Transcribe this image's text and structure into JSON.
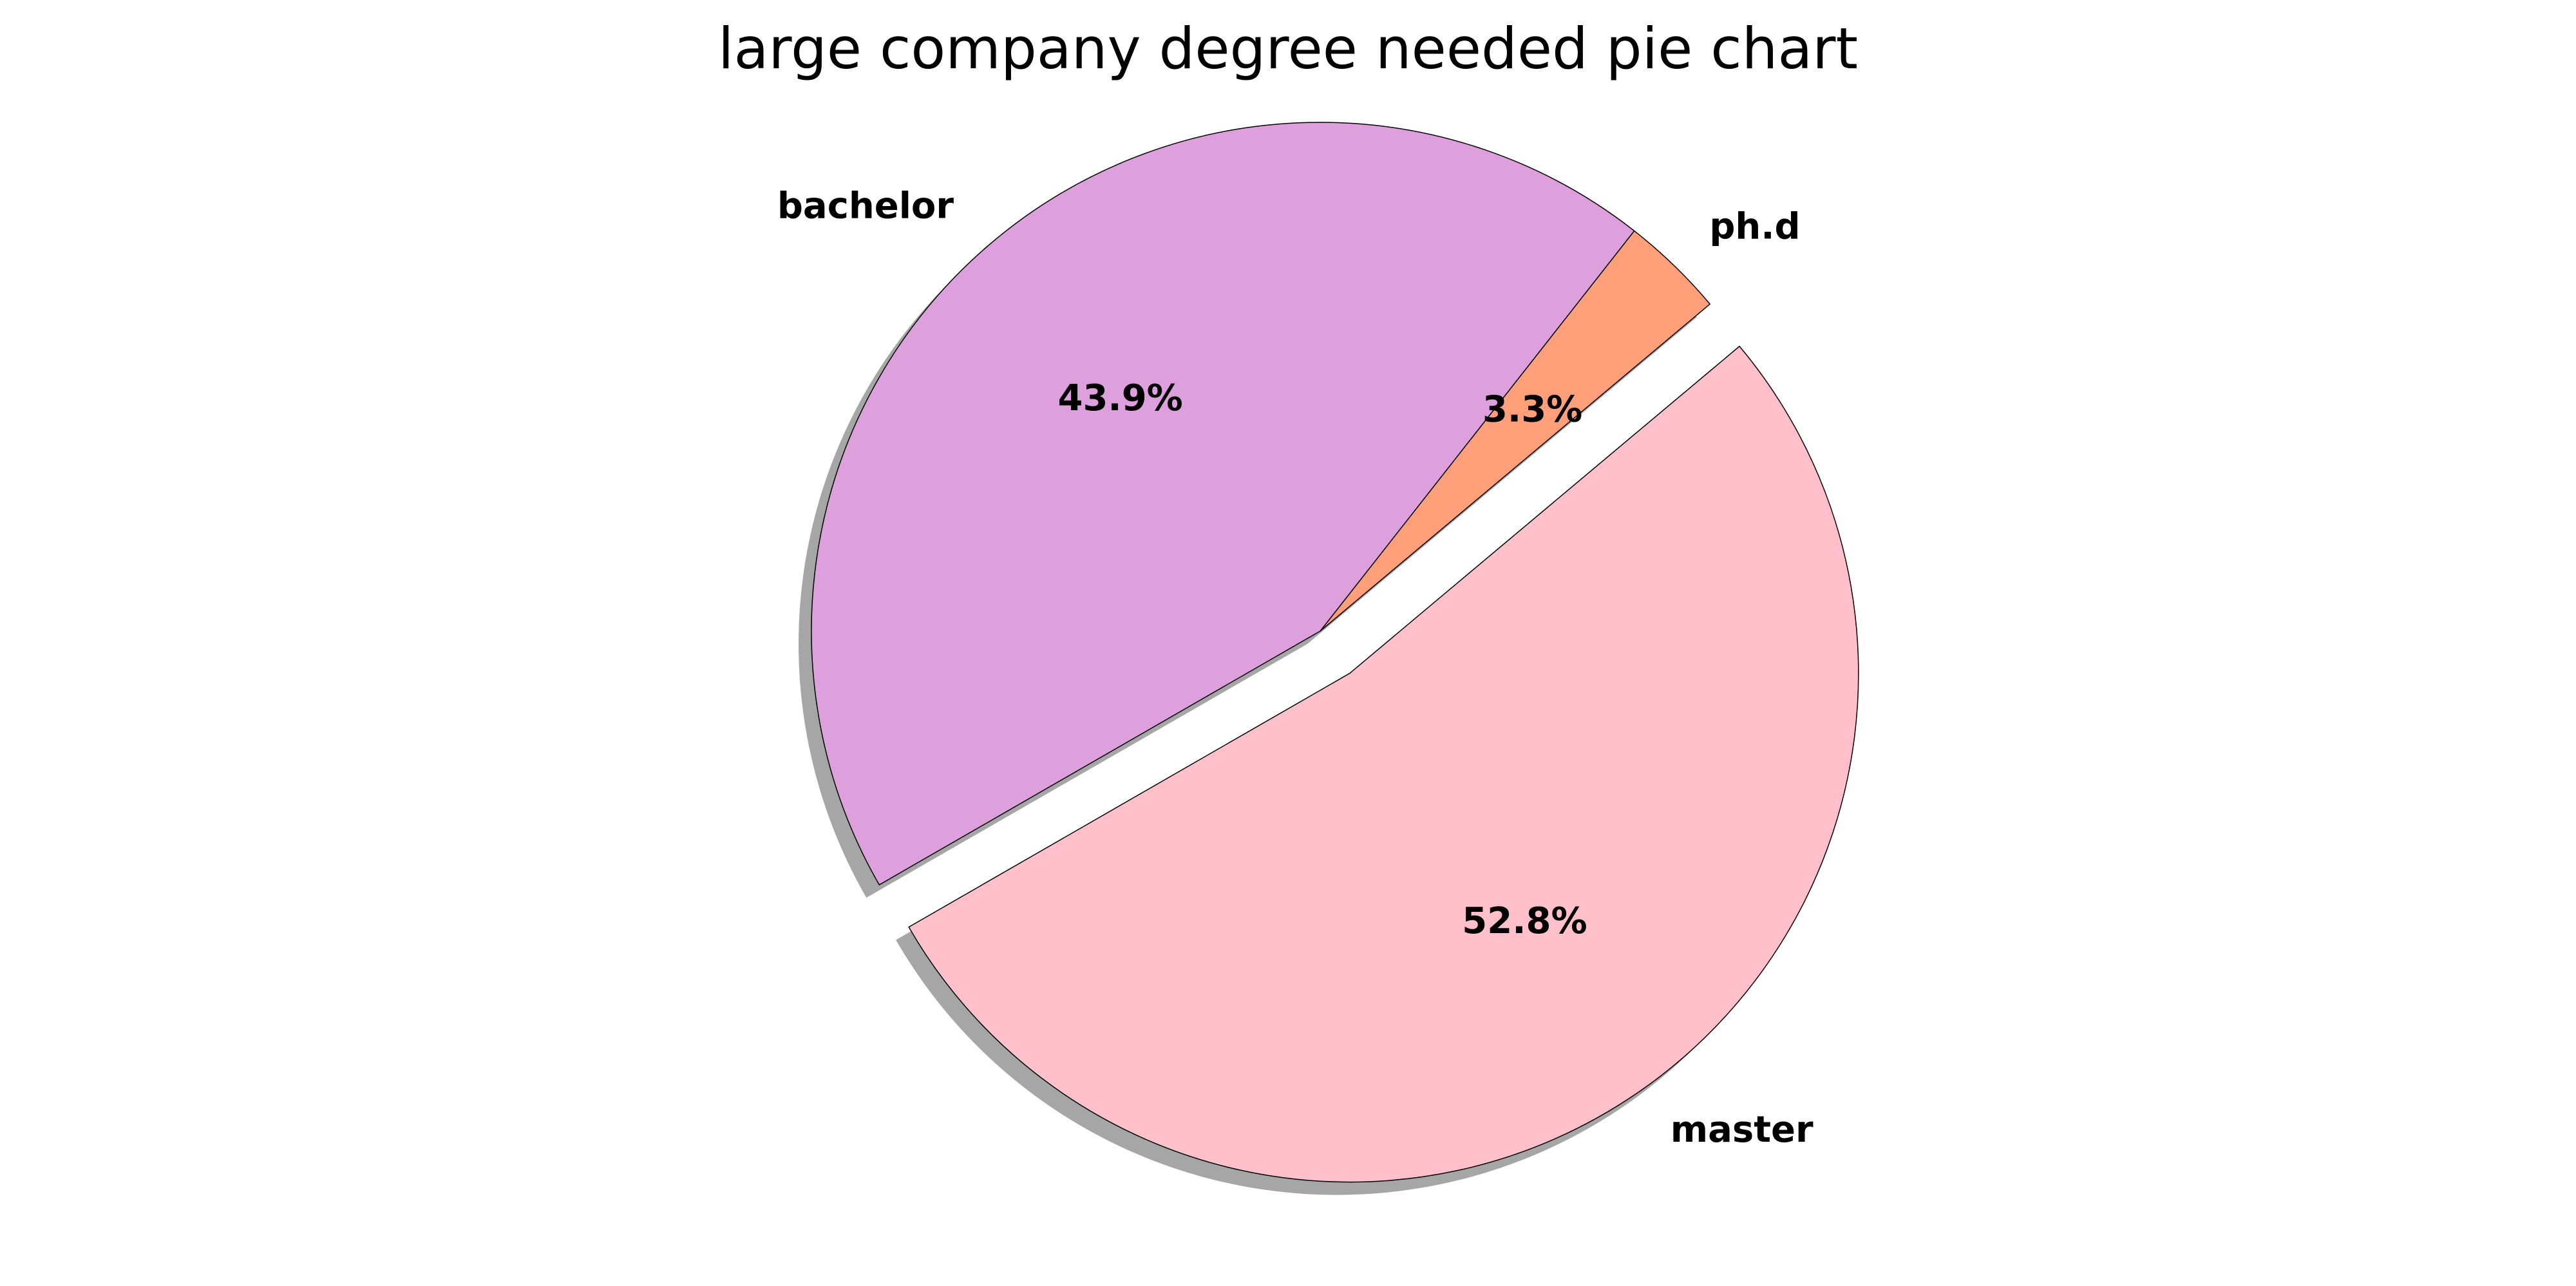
{
  "chart_data": {
    "type": "pie",
    "title": "large company degree needed pie chart",
    "slices": [
      {
        "label": "ph.d",
        "value": 3.3,
        "pct_label": "3.3%",
        "color": "#FFA07A",
        "exploded": false
      },
      {
        "label": "bachelor",
        "value": 43.9,
        "pct_label": "43.9%",
        "color": "#DDA0DD",
        "exploded": false
      },
      {
        "label": "master",
        "value": 52.8,
        "pct_label": "52.8%",
        "color": "#FFC0CB",
        "exploded": true
      }
    ],
    "shadow": true,
    "edgecolor": "#000000",
    "legend": "none"
  }
}
